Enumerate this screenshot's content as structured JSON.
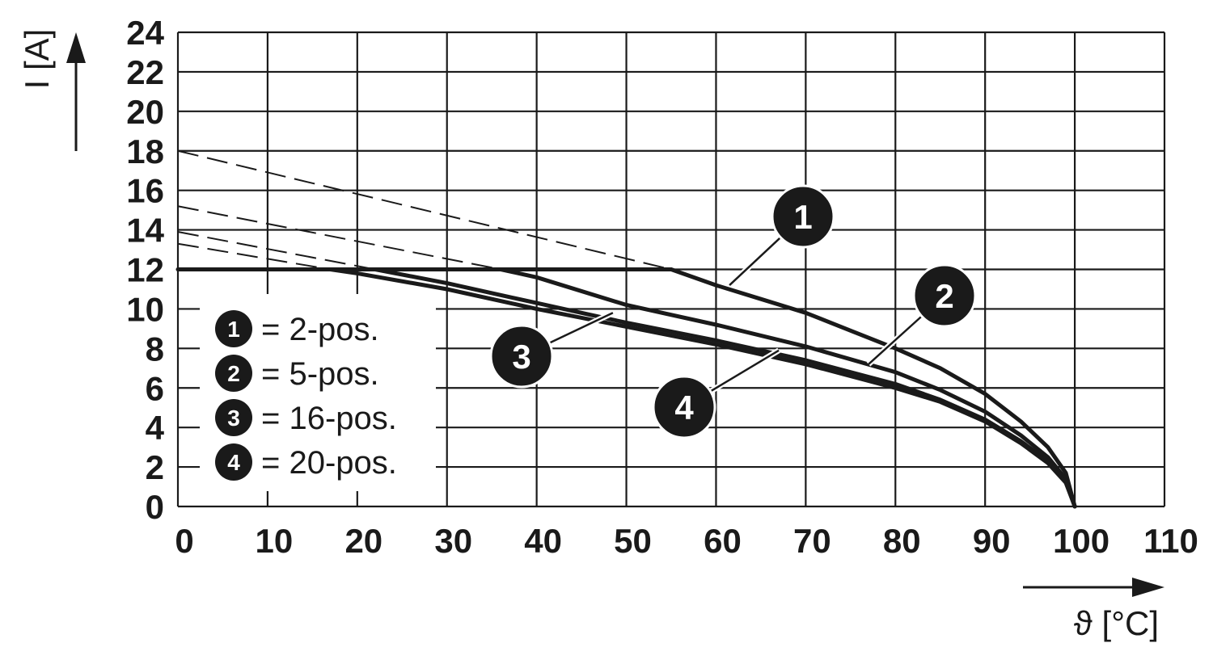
{
  "chart_data": {
    "type": "line",
    "xlabel": "ϑ [°C]",
    "ylabel": "I [A]",
    "xlim": [
      0,
      110
    ],
    "ylim": [
      0,
      24
    ],
    "x_ticks": [
      0,
      10,
      20,
      30,
      40,
      50,
      60,
      70,
      80,
      90,
      100,
      110
    ],
    "y_ticks": [
      0,
      2,
      4,
      6,
      8,
      10,
      12,
      14,
      16,
      18,
      20,
      22,
      24
    ],
    "grid": true,
    "legend_position": "left",
    "legend": [
      {
        "marker": "1",
        "text": "= 2-pos."
      },
      {
        "marker": "2",
        "text": "= 5-pos."
      },
      {
        "marker": "3",
        "text": "= 16-pos."
      },
      {
        "marker": "4",
        "text": "= 20-pos."
      }
    ],
    "limit_line": {
      "y": 12,
      "x": [
        0,
        55
      ],
      "style": "solid"
    },
    "series": [
      {
        "marker": "1",
        "dashed": {
          "x": [
            0,
            55
          ],
          "y": [
            18,
            12
          ]
        },
        "points": {
          "x": [
            55,
            60,
            65,
            70,
            75,
            80,
            85,
            90,
            94,
            97,
            99,
            100
          ],
          "y": [
            12,
            11.2,
            10.5,
            9.8,
            8.9,
            8.0,
            7.0,
            5.7,
            4.3,
            3.0,
            1.7,
            0
          ]
        }
      },
      {
        "marker": "2",
        "dashed": {
          "x": [
            0,
            36
          ],
          "y": [
            15.2,
            12
          ]
        },
        "points": {
          "x": [
            36,
            40,
            50,
            60,
            70,
            80,
            85,
            90,
            94,
            97,
            99,
            100
          ],
          "y": [
            12,
            11.6,
            10.2,
            9.2,
            8.1,
            6.8,
            5.9,
            4.8,
            3.6,
            2.5,
            1.4,
            0
          ]
        }
      },
      {
        "marker": "3",
        "dashed": {
          "x": [
            0,
            22
          ],
          "y": [
            13.9,
            12
          ]
        },
        "points": {
          "x": [
            22,
            30,
            40,
            50,
            60,
            70,
            80,
            85,
            90,
            94,
            97,
            99,
            100
          ],
          "y": [
            12,
            11.3,
            10.3,
            9.3,
            8.4,
            7.4,
            6.2,
            5.4,
            4.4,
            3.3,
            2.3,
            1.3,
            0
          ]
        }
      },
      {
        "marker": "4",
        "dashed": {
          "x": [
            0,
            17
          ],
          "y": [
            13.3,
            12
          ]
        },
        "points": {
          "x": [
            17,
            20,
            30,
            40,
            50,
            60,
            70,
            80,
            85,
            90,
            94,
            97,
            99,
            100
          ],
          "y": [
            12,
            11.8,
            11.0,
            10.0,
            9.1,
            8.2,
            7.2,
            6.0,
            5.3,
            4.3,
            3.2,
            2.2,
            1.2,
            0
          ]
        }
      }
    ],
    "callouts": [
      {
        "marker": "1",
        "point": {
          "x": 61.5,
          "y": 11.2
        }
      },
      {
        "marker": "2",
        "point": {
          "x": 77,
          "y": 7.2
        }
      },
      {
        "marker": "3",
        "point": {
          "x": 48.5,
          "y": 9.8
        }
      },
      {
        "marker": "4",
        "point": {
          "x": 67,
          "y": 7.9
        }
      }
    ]
  }
}
